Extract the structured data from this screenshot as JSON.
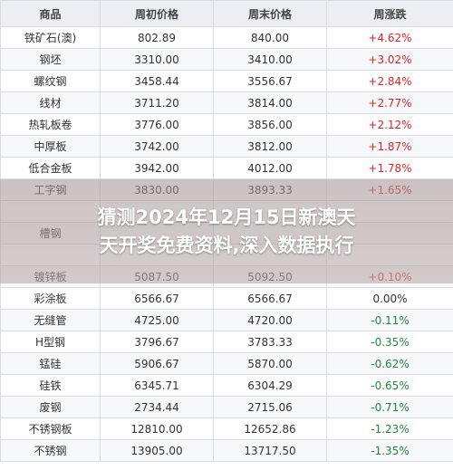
{
  "table": {
    "headers": [
      "商品",
      "周初价格",
      "周末价格",
      "周涨跌"
    ],
    "rows": [
      {
        "name": "铁矿石(澳)",
        "start": "802.89",
        "end": "840.00",
        "change": "+4.62%",
        "dir": "up"
      },
      {
        "name": "钢坯",
        "start": "3310.00",
        "end": "3410.00",
        "change": "+3.02%",
        "dir": "up"
      },
      {
        "name": "螺纹钢",
        "start": "3458.44",
        "end": "3556.67",
        "change": "+2.84%",
        "dir": "up"
      },
      {
        "name": "线材",
        "start": "3711.20",
        "end": "3814.00",
        "change": "+2.77%",
        "dir": "up"
      },
      {
        "name": "热轧板卷",
        "start": "3776.00",
        "end": "3856.00",
        "change": "+2.12%",
        "dir": "up"
      },
      {
        "name": "中厚板",
        "start": "3742.00",
        "end": "3812.00",
        "change": "+1.87%",
        "dir": "up"
      },
      {
        "name": "低合金板",
        "start": "3942.00",
        "end": "4012.00",
        "change": "+1.78%",
        "dir": "up"
      },
      {
        "name": "工字钢",
        "start": "3830.00",
        "end": "3893.33",
        "change": "+1.65%",
        "dir": "up"
      },
      {
        "name": "",
        "start": "",
        "end": "",
        "change": "",
        "dir": "up"
      },
      {
        "name": "槽钢",
        "start": "",
        "end": "",
        "change": "",
        "dir": "up"
      },
      {
        "name": "",
        "start": "",
        "end": "",
        "change": "",
        "dir": "up"
      },
      {
        "name": "镀锌板",
        "start": "5087.50",
        "end": "5092.50",
        "change": "+0.10%",
        "dir": "up"
      },
      {
        "name": "彩涂板",
        "start": "6566.67",
        "end": "6566.67",
        "change": "0.00%",
        "dir": "flat"
      },
      {
        "name": "无缝管",
        "start": "4725.00",
        "end": "4720.00",
        "change": "-0.11%",
        "dir": "down"
      },
      {
        "name": "H型钢",
        "start": "3796.67",
        "end": "3783.33",
        "change": "-0.35%",
        "dir": "down"
      },
      {
        "name": "锰硅",
        "start": "5906.67",
        "end": "5870.00",
        "change": "-0.62%",
        "dir": "down"
      },
      {
        "name": "硅铁",
        "start": "6345.71",
        "end": "6304.29",
        "change": "-0.65%",
        "dir": "down"
      },
      {
        "name": "废钢",
        "start": "2734.44",
        "end": "2715.06",
        "change": "-0.71%",
        "dir": "down"
      },
      {
        "name": "不锈钢板",
        "start": "12810.00",
        "end": "12652.86",
        "change": "-1.23%",
        "dir": "down"
      },
      {
        "name": "不锈钢",
        "start": "13905.00",
        "end": "13717.50",
        "change": "-1.35%",
        "dir": "down"
      }
    ]
  },
  "overlay": {
    "line1": "猜测2024年12月15日新澳天",
    "line2": "天开奖免费资料,深入数据执行"
  },
  "colors": {
    "up": "#e02424",
    "down": "#1f8a3a",
    "flat": "#333333",
    "header_bg": "#eceef4"
  }
}
